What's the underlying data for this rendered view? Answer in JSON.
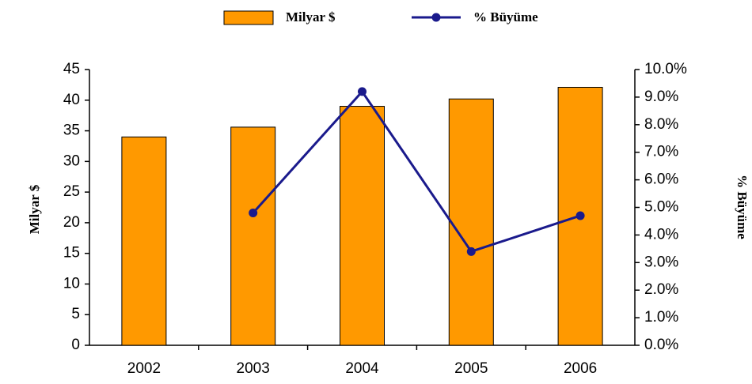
{
  "chart_data": {
    "type": "bar",
    "categories": [
      "2002",
      "2003",
      "2004",
      "2005",
      "2006"
    ],
    "series": [
      {
        "name": "Milyar $",
        "type": "bar",
        "color": "#ff9900",
        "values": [
          34.0,
          35.6,
          39.0,
          40.2,
          42.1
        ]
      },
      {
        "name": "% Büyüme",
        "type": "line",
        "axis": "y2",
        "color": "#1a1a8c",
        "values": [
          null,
          4.8,
          9.2,
          3.4,
          4.7
        ]
      }
    ],
    "ylabel": "Milyar $",
    "y2label": "% Büyüme",
    "ylim": [
      0,
      45
    ],
    "yticks": [
      0,
      5,
      10,
      15,
      20,
      25,
      30,
      35,
      40,
      45
    ],
    "y2lim": [
      0,
      10
    ],
    "y2ticks": [
      {
        "value": 0,
        "label": "0.0%"
      },
      {
        "value": 1,
        "label": "1.0%"
      },
      {
        "value": 2,
        "label": "2.0%"
      },
      {
        "value": 3,
        "label": "3.0%"
      },
      {
        "value": 4,
        "label": "4.0%"
      },
      {
        "value": 5,
        "label": "5.0%"
      },
      {
        "value": 6,
        "label": "6.0%"
      },
      {
        "value": 7,
        "label": "7.0%"
      },
      {
        "value": 8,
        "label": "8.0%"
      },
      {
        "value": 9,
        "label": "9.0%"
      },
      {
        "value": 10,
        "label": "10.0%"
      }
    ],
    "legend": "top",
    "grid": false
  }
}
